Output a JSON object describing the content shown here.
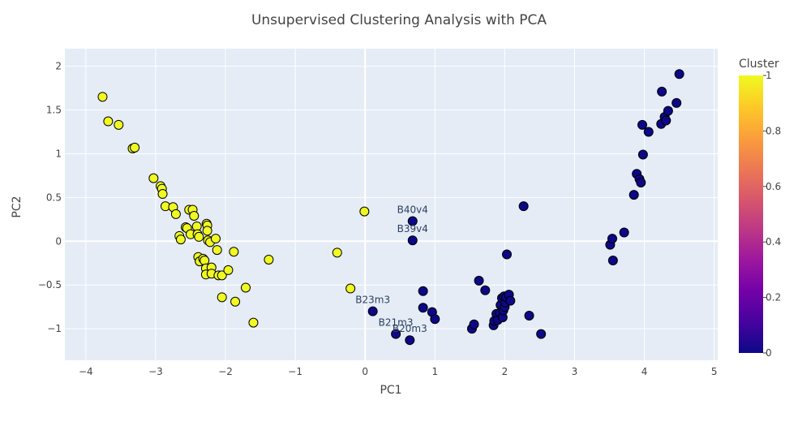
{
  "chart_data": {
    "type": "scatter",
    "title": "Unsupervised Clustering Analysis with PCA",
    "xlabel": "PC1",
    "ylabel": "PC2",
    "xlim": [
      -4.3,
      5.05
    ],
    "ylim": [
      -1.36,
      2.2
    ],
    "xticks": [
      -4,
      -3,
      -2,
      -1,
      0,
      1,
      2,
      3,
      4,
      5
    ],
    "yticks": [
      -1,
      -0.5,
      0,
      0.5,
      1,
      1.5,
      2
    ],
    "grid": true,
    "colorbar": {
      "title": "Cluster",
      "ticks": [
        0,
        0.2,
        0.4,
        0.6,
        0.8,
        1
      ],
      "colors": [
        "#0d0887",
        "#46039f",
        "#7201a8",
        "#9c179e",
        "#bd3786",
        "#d8576b",
        "#ed7953",
        "#fb9f3a",
        "#fdca26",
        "#f0f921"
      ]
    },
    "series": [
      {
        "cluster": 1,
        "color": "#f0f921",
        "points": [
          [
            -3.76,
            1.65
          ],
          [
            -3.68,
            1.37
          ],
          [
            -3.53,
            1.33
          ],
          [
            -3.33,
            1.06
          ],
          [
            -3.3,
            1.07
          ],
          [
            -3.03,
            0.72
          ],
          [
            -2.93,
            0.63
          ],
          [
            -2.91,
            0.6
          ],
          [
            -2.9,
            0.54
          ],
          [
            -2.86,
            0.4
          ],
          [
            -2.75,
            0.39
          ],
          [
            -2.71,
            0.31
          ],
          [
            -2.66,
            0.06
          ],
          [
            -2.64,
            0.02
          ],
          [
            -2.57,
            0.16
          ],
          [
            -2.55,
            0.15
          ],
          [
            -2.52,
            0.36
          ],
          [
            -2.5,
            0.08
          ],
          [
            -2.47,
            0.36
          ],
          [
            -2.45,
            0.29
          ],
          [
            -2.41,
            0.17
          ],
          [
            -2.4,
            0.08
          ],
          [
            -2.38,
            0.05
          ],
          [
            -2.39,
            -0.18
          ],
          [
            -2.37,
            -0.23
          ],
          [
            -2.32,
            -0.2
          ],
          [
            -2.3,
            -0.22
          ],
          [
            -2.28,
            -0.31
          ],
          [
            -2.28,
            -0.38
          ],
          [
            -2.27,
            0.2
          ],
          [
            -2.26,
            0.18
          ],
          [
            -2.26,
            0.12
          ],
          [
            -2.25,
            0.01
          ],
          [
            -2.22,
            -0.01
          ],
          [
            -2.2,
            -0.3
          ],
          [
            -2.2,
            -0.37
          ],
          [
            -2.14,
            0.03
          ],
          [
            -2.12,
            -0.1
          ],
          [
            -2.1,
            -0.39
          ],
          [
            -2.05,
            -0.39
          ],
          [
            -2.05,
            -0.64
          ],
          [
            -1.96,
            -0.33
          ],
          [
            -1.88,
            -0.12
          ],
          [
            -1.86,
            -0.69
          ],
          [
            -1.71,
            -0.53
          ],
          [
            -1.6,
            -0.93
          ],
          [
            -1.38,
            -0.21
          ],
          [
            -0.4,
            -0.13
          ],
          [
            -0.21,
            -0.54
          ],
          [
            -0.01,
            0.34
          ]
        ]
      },
      {
        "cluster": 0,
        "color": "#0d0887",
        "points": [
          [
            0.11,
            -0.8
          ],
          [
            0.44,
            -1.06
          ],
          [
            0.64,
            -1.13
          ],
          [
            0.68,
            0.23
          ],
          [
            0.68,
            0.01
          ],
          [
            0.83,
            -0.57
          ],
          [
            0.83,
            -0.76
          ],
          [
            0.96,
            -0.81
          ],
          [
            1.0,
            -0.89
          ],
          [
            1.53,
            -1.0
          ],
          [
            1.56,
            -0.95
          ],
          [
            1.63,
            -0.45
          ],
          [
            1.72,
            -0.56
          ],
          [
            1.84,
            -0.96
          ],
          [
            1.85,
            -0.91
          ],
          [
            1.88,
            -0.83
          ],
          [
            1.9,
            -0.9
          ],
          [
            1.93,
            -0.82
          ],
          [
            1.94,
            -0.73
          ],
          [
            1.96,
            -0.65
          ],
          [
            1.97,
            -0.87
          ],
          [
            1.98,
            -0.79
          ],
          [
            1.99,
            -0.63
          ],
          [
            2.0,
            -0.75
          ],
          [
            2.01,
            -0.7
          ],
          [
            2.02,
            -0.64
          ],
          [
            2.03,
            -0.15
          ],
          [
            2.06,
            -0.61
          ],
          [
            2.08,
            -0.68
          ],
          [
            2.27,
            0.4
          ],
          [
            2.35,
            -0.85
          ],
          [
            2.52,
            -1.06
          ],
          [
            3.51,
            -0.04
          ],
          [
            3.54,
            0.03
          ],
          [
            3.55,
            -0.22
          ],
          [
            3.71,
            0.1
          ],
          [
            3.85,
            0.53
          ],
          [
            3.89,
            0.77
          ],
          [
            3.93,
            0.71
          ],
          [
            3.95,
            0.67
          ],
          [
            3.97,
            1.33
          ],
          [
            3.98,
            0.99
          ],
          [
            4.06,
            1.25
          ],
          [
            4.24,
            1.34
          ],
          [
            4.25,
            1.71
          ],
          [
            4.29,
            1.42
          ],
          [
            4.31,
            1.38
          ],
          [
            4.34,
            1.49
          ],
          [
            4.46,
            1.58
          ],
          [
            4.5,
            1.91
          ]
        ]
      }
    ],
    "annotations": [
      {
        "text": "B40v4",
        "x": 0.68,
        "y": 0.23
      },
      {
        "text": "B39v4",
        "x": 0.68,
        "y": 0.01
      },
      {
        "text": "B23m3",
        "x": 0.11,
        "y": -0.8
      },
      {
        "text": "B21m3",
        "x": 0.44,
        "y": -1.06
      },
      {
        "text": "B20m3",
        "x": 0.64,
        "y": -1.13
      }
    ]
  }
}
